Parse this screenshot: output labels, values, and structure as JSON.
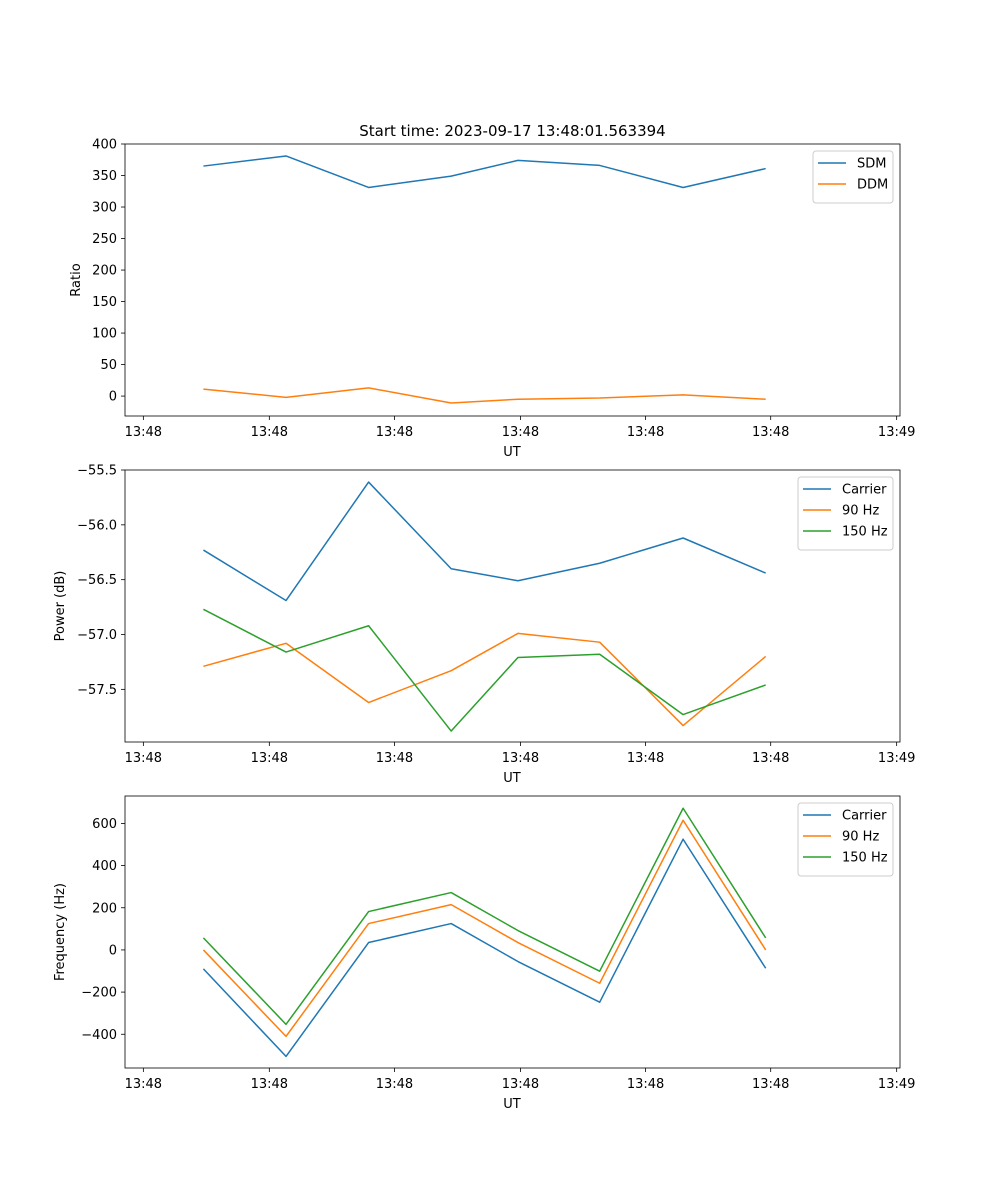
{
  "figure": {
    "title": "Start time: 2023-09-17 13:48:01.563394"
  },
  "colors": {
    "blue": "#1f77b4",
    "orange": "#ff7f0e",
    "green": "#2ca02c",
    "axis": "#000000",
    "legend_border": "#cccccc"
  },
  "chart_data": [
    {
      "type": "line",
      "title": "Start time: 2023-09-17 13:48:01.563394",
      "xlabel": "UT",
      "ylabel": "Ratio",
      "xlim": [
        0,
        9.29
      ],
      "ylim": [
        -31.6,
        400
      ],
      "x": [
        0.94,
        1.93,
        2.92,
        3.91,
        4.71,
        5.69,
        6.69,
        7.68
      ],
      "xticks": [
        0.22,
        1.73,
        3.23,
        4.74,
        6.24,
        7.74,
        9.25
      ],
      "xtick_labels": [
        "13:48",
        "13:48",
        "13:48",
        "13:48",
        "13:48",
        "13:48",
        "13:49"
      ],
      "yticks": [
        400,
        350,
        300,
        250,
        200,
        150,
        100,
        50,
        0
      ],
      "ytick_labels": [
        "400",
        "350",
        "300",
        "250",
        "200",
        "150",
        "100",
        "50",
        "0"
      ],
      "legend_position": "top-right",
      "series": [
        {
          "name": "SDM",
          "color": "#1f77b4",
          "values": [
            365,
            381,
            331,
            349,
            374,
            366,
            331,
            361
          ]
        },
        {
          "name": "DDM",
          "color": "#ff7f0e",
          "values": [
            11,
            -2,
            13,
            -11,
            -5,
            -3,
            2,
            -5
          ]
        }
      ]
    },
    {
      "type": "line",
      "title": "",
      "xlabel": "UT",
      "ylabel": "Power (dB)",
      "xlim": [
        0,
        9.29
      ],
      "ylim": [
        -57.98,
        -55.5
      ],
      "x": [
        0.94,
        1.93,
        2.92,
        3.91,
        4.71,
        5.69,
        6.69,
        7.68
      ],
      "xticks": [
        0.22,
        1.73,
        3.23,
        4.74,
        6.24,
        7.74,
        9.25
      ],
      "xtick_labels": [
        "13:48",
        "13:48",
        "13:48",
        "13:48",
        "13:48",
        "13:48",
        "13:49"
      ],
      "yticks": [
        -55.5,
        -56.0,
        -56.5,
        -57.0,
        -57.5
      ],
      "ytick_labels": [
        "−55.5",
        "−56.0",
        "−56.5",
        "−57.0",
        "−57.5"
      ],
      "legend_position": "top-right",
      "series": [
        {
          "name": "Carrier",
          "color": "#1f77b4",
          "values": [
            -56.23,
            -56.69,
            -55.61,
            -56.4,
            -56.51,
            -56.35,
            -56.12,
            -56.44
          ]
        },
        {
          "name": "90 Hz",
          "color": "#ff7f0e",
          "values": [
            -57.29,
            -57.08,
            -57.62,
            -57.33,
            -56.99,
            -57.07,
            -57.83,
            -57.2
          ]
        },
        {
          "name": "150 Hz",
          "color": "#2ca02c",
          "values": [
            -56.77,
            -57.16,
            -56.92,
            -57.88,
            -57.21,
            -57.18,
            -57.73,
            -57.46
          ]
        }
      ]
    },
    {
      "type": "line",
      "title": "",
      "xlabel": "UT",
      "ylabel": "Frequency (Hz)",
      "xlim": [
        0,
        9.29
      ],
      "ylim": [
        -560,
        730
      ],
      "x": [
        0.94,
        1.93,
        2.92,
        3.91,
        4.71,
        5.69,
        6.69,
        7.68
      ],
      "xticks": [
        0.22,
        1.73,
        3.23,
        4.74,
        6.24,
        7.74,
        9.25
      ],
      "xtick_labels": [
        "13:48",
        "13:48",
        "13:48",
        "13:48",
        "13:48",
        "13:48",
        "13:49"
      ],
      "yticks": [
        600,
        400,
        200,
        0,
        -200,
        -400
      ],
      "ytick_labels": [
        "600",
        "400",
        "200",
        "0",
        "−200",
        "−400"
      ],
      "legend_position": "top-right",
      "series": [
        {
          "name": "Carrier",
          "color": "#1f77b4",
          "values": [
            -90,
            -505,
            35,
            125,
            -55,
            -248,
            525,
            -87
          ]
        },
        {
          "name": "90 Hz",
          "color": "#ff7f0e",
          "values": [
            0,
            -410,
            125,
            215,
            35,
            -158,
            615,
            0
          ]
        },
        {
          "name": "150 Hz",
          "color": "#2ca02c",
          "values": [
            57,
            -353,
            182,
            272,
            92,
            -101,
            672,
            57
          ]
        }
      ]
    }
  ]
}
